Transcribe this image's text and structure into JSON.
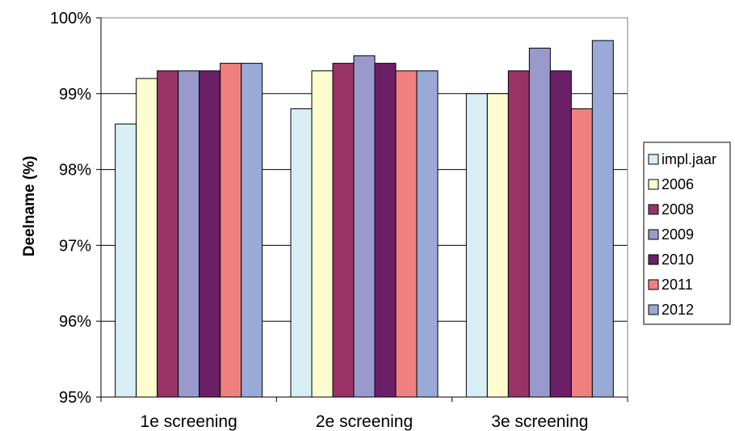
{
  "chart_data": {
    "type": "bar",
    "title": "",
    "xlabel": "",
    "ylabel": "Deelname (%)",
    "ylim": [
      95,
      100
    ],
    "yticks": [
      "95%",
      "96%",
      "97%",
      "98%",
      "99%",
      "100%"
    ],
    "ytick_values": [
      95,
      96,
      97,
      98,
      99,
      100
    ],
    "grid": true,
    "legend_position": "right",
    "categories": [
      "1e screening",
      "2e screening",
      "3e screening"
    ],
    "series": [
      {
        "name": "impl.jaar",
        "color": "#d6eef4",
        "values": [
          98.6,
          98.8,
          99.0
        ]
      },
      {
        "name": "2006",
        "color": "#fdfdd0",
        "values": [
          99.2,
          99.3,
          99.0
        ]
      },
      {
        "name": "2008",
        "color": "#993366",
        "values": [
          99.3,
          99.4,
          99.3
        ]
      },
      {
        "name": "2009",
        "color": "#9999cc",
        "values": [
          99.3,
          99.5,
          99.6
        ]
      },
      {
        "name": "2010",
        "color": "#6b1f66",
        "values": [
          99.3,
          99.4,
          99.3
        ]
      },
      {
        "name": "2011",
        "color": "#f08080",
        "values": [
          99.4,
          99.3,
          98.8
        ]
      },
      {
        "name": "2012",
        "color": "#99aad6",
        "values": [
          99.4,
          99.3,
          99.7
        ]
      }
    ]
  }
}
